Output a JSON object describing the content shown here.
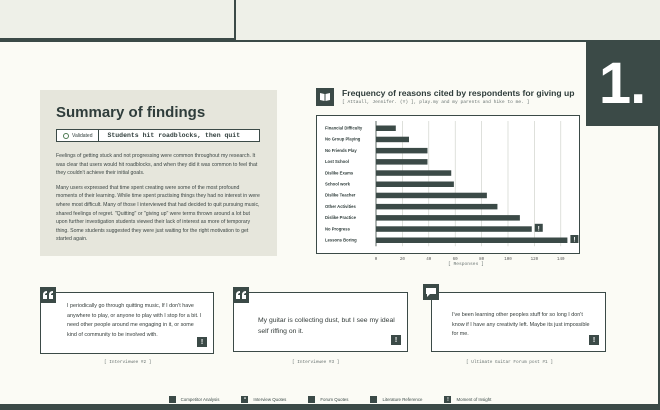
{
  "badge_number": "1.",
  "summary": {
    "title": "Summary of findings",
    "tag_label": "Validated",
    "tag_text": "Students hit roadblocks, then quit",
    "para1": "Feelings of getting stuck and not progressing were common throughout my research. It was clear that users would hit roadblocks, and when they did it was common to feel that they couldn't achieve their initial goals.",
    "para2": "Many users expressed that time spent creating were some of the most profound moments of their learning. While time spent practising things they had no interest in were where most difficult. Many of those I interviewed that had decided to quit pursuing music, shared feelings of regret. \"Quitting\" or \"giving up\" were terms thrown around a lot but upon further investigation students viewed their lack of interest as more of temporary thing. Some students suggested they were just waiting for the right motivation to get started again."
  },
  "chart_title": "Frequency of reasons cited by respondents for giving up",
  "chart_subtitle": "[ Attaull, Jennifer. (Y) ], play.my and my parents and hike to me. ]",
  "chart_data": {
    "type": "bar",
    "orientation": "horizontal",
    "categories": [
      "Financial Difficulty",
      "No Group Playing",
      "No Friends Play",
      "Lost School",
      "Dislike Exams",
      "School work",
      "Dislike Teacher",
      "Other Activities",
      "Dislike Practice",
      "No Progress",
      "Lessons Boring"
    ],
    "values": [
      15,
      25,
      39,
      39,
      57,
      59,
      84,
      92,
      109,
      118,
      145
    ],
    "xlim": [
      0,
      150
    ],
    "ticks": [
      "0",
      "20",
      "40",
      "60",
      "80",
      "100",
      "120",
      "140"
    ],
    "xlabel": "[ Responses ]",
    "grid": true,
    "bar_color": "#3b4a47",
    "flagged": [
      "No Progress",
      "Lessons Boring"
    ]
  },
  "quotes": [
    {
      "text": "I periodically go through quitting music, If I don't have anywhere to play, or anyone to play with I stop for a bit. I need other people around me engaging in it, or some kind of community to be involved with.",
      "source": "[ Interviewee #2 ]",
      "icon": "quote-icon"
    },
    {
      "text": "My guitar is collecting dust, but I see my ideal self riffing on it.",
      "source": "[ Interviewee #3 ]",
      "icon": "quote-icon"
    },
    {
      "text": "I've been learning other peoples stuff for so long I don't know if I have any creativity left. Maybe its just impossible for me.",
      "source": "[ Ultimate Guitar Forum post #1 ]",
      "icon": "forum-icon"
    }
  ],
  "legend": [
    {
      "label": "Competitor Analysis",
      "icon": "competitor-icon"
    },
    {
      "label": "Interview Quotes",
      "icon": "quote-icon"
    },
    {
      "label": "Forum Quotes",
      "icon": "forum-icon"
    },
    {
      "label": "Literature Reference",
      "icon": "book-icon"
    },
    {
      "label": "Moment of Insight",
      "icon": "insight-icon"
    }
  ],
  "exclaim": "!",
  "colors": {
    "dark": "#3b4a47",
    "paper": "#fbfbf5",
    "panel": "#e6e6dc",
    "accent_green": "#4d7a52"
  }
}
